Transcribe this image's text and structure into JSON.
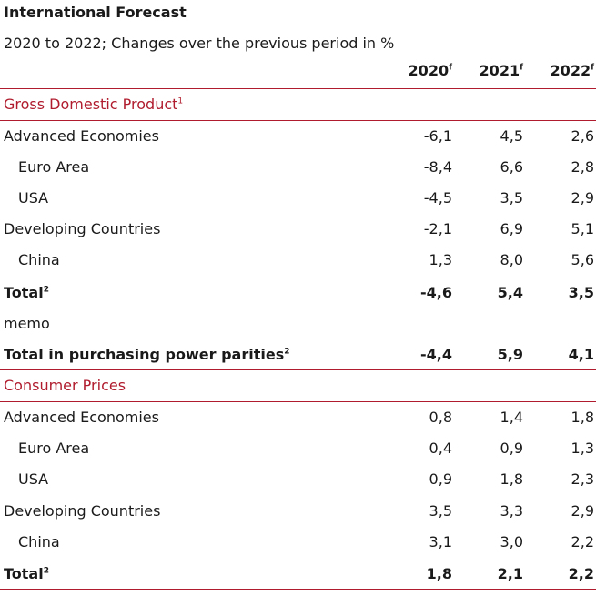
{
  "title": "International Forecast",
  "subtitle": "2020 to 2022; Changes over the previous period in %",
  "columns": [
    {
      "label": "2020",
      "sup": "f"
    },
    {
      "label": "2021",
      "sup": "f"
    },
    {
      "label": "2022",
      "sup": "f"
    }
  ],
  "sections": [
    {
      "heading": "Gross Domestic Product",
      "heading_sup": "1",
      "rows": [
        {
          "label": "Advanced Economies",
          "values": [
            "-6,1",
            "4,5",
            "2,6"
          ]
        },
        {
          "label": "Euro Area",
          "values": [
            "-8,4",
            "6,6",
            "2,8"
          ]
        },
        {
          "label": "USA",
          "values": [
            "-4,5",
            "3,5",
            "2,9"
          ]
        },
        {
          "label": "Developing Countries",
          "values": [
            "-2,1",
            "6,9",
            "5,1"
          ]
        },
        {
          "label": "China",
          "values": [
            "1,3",
            "8,0",
            "5,6"
          ]
        },
        {
          "label": "Total",
          "sup": "2",
          "values": [
            "-4,6",
            "5,4",
            "3,5"
          ]
        },
        {
          "label": "memo",
          "values": [
            "",
            "",
            ""
          ]
        },
        {
          "label": "Total in purchasing power parities",
          "sup": "2",
          "values": [
            "-4,4",
            "5,9",
            "4,1"
          ]
        }
      ]
    },
    {
      "heading": "Consumer Prices",
      "rows": [
        {
          "label": "Advanced Economies",
          "values": [
            "0,8",
            "1,4",
            "1,8"
          ]
        },
        {
          "label": "Euro Area",
          "values": [
            "0,4",
            "0,9",
            "1,3"
          ]
        },
        {
          "label": "USA",
          "values": [
            "0,9",
            "1,8",
            "2,3"
          ]
        },
        {
          "label": "Developing Countries",
          "values": [
            "3,5",
            "3,3",
            "2,9"
          ]
        },
        {
          "label": "China",
          "values": [
            "3,1",
            "3,0",
            "2,2"
          ]
        },
        {
          "label": "Total",
          "sup": "2",
          "values": [
            "1,8",
            "2,1",
            "2,2"
          ]
        }
      ]
    }
  ]
}
